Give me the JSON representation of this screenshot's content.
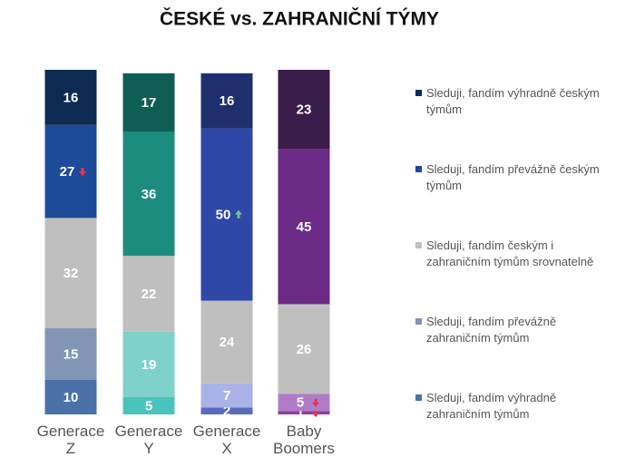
{
  "chart_data": {
    "type": "stacked_bar",
    "title": "ČESKÉ vs. ZAHRANIČNÍ TÝMY",
    "categories": [
      "Generace Z",
      "Generace Y",
      "Generace X",
      "Baby Boomers"
    ],
    "ylim": [
      0,
      100
    ],
    "legend": "right",
    "series": [
      {
        "name": "Sleduji, fandím výhradně českým týmům",
        "color": "#0d2a52",
        "colors": [
          "#0d2a52",
          "#0f5e56",
          "#1f2f6e",
          "#3a1d4a"
        ],
        "values": [
          16,
          17,
          16,
          23
        ],
        "trends": [
          null,
          null,
          null,
          null
        ]
      },
      {
        "name": "Sleduji, fandím převážně českým týmům",
        "color": "#1e4a9a",
        "colors": [
          "#1e4a9a",
          "#1d8c80",
          "#2f48a8",
          "#6b2a85"
        ],
        "values": [
          27,
          36,
          50,
          45
        ],
        "trends": [
          "down",
          null,
          "up",
          null
        ]
      },
      {
        "name": "Sleduji, fandím českým i zahraničním týmům srovnatelně",
        "color": "#bfbfbf",
        "colors": [
          "#bfbfbf",
          "#bfbfbf",
          "#bfbfbf",
          "#bfbfbf"
        ],
        "values": [
          32,
          22,
          24,
          26
        ],
        "trends": [
          null,
          null,
          null,
          null
        ]
      },
      {
        "name": "Sleduji, fandím převážně zahraničním týmům",
        "color": "#8096b4",
        "colors": [
          "#8096b4",
          "#7fd1cc",
          "#a9b3e8",
          "#b07cc6"
        ],
        "values": [
          15,
          19,
          7,
          5
        ],
        "trends": [
          null,
          null,
          null,
          "down"
        ]
      },
      {
        "name": "Sleduji, fandím výhradně zahraničním týmům",
        "color": "#4a72a8",
        "colors": [
          "#4a72a8",
          "#4bc3bd",
          "#5a6bbf",
          "#8a3ea8"
        ],
        "values": [
          10,
          5,
          2,
          1
        ],
        "trends": [
          null,
          null,
          null,
          "down"
        ]
      }
    ]
  }
}
